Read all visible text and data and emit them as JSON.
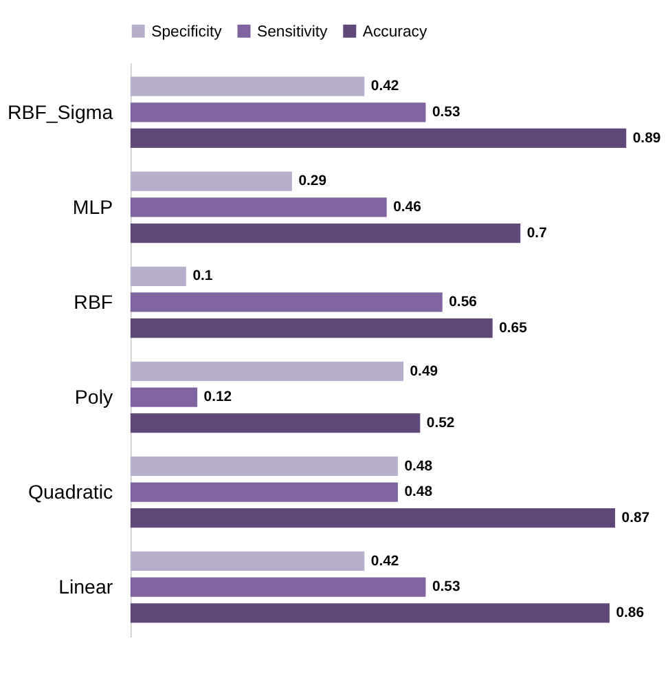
{
  "chart_data": {
    "type": "bar",
    "orientation": "horizontal",
    "categories": [
      "RBF_Sigma",
      "MLP",
      "RBF",
      "Poly",
      "Quadratic",
      "Linear"
    ],
    "series": [
      {
        "name": "Specificity",
        "color": "#b8afcc",
        "values": [
          0.42,
          0.29,
          0.1,
          0.49,
          0.48,
          0.42
        ]
      },
      {
        "name": "Sensitivity",
        "color": "#8064a2",
        "values": [
          0.53,
          0.46,
          0.56,
          0.12,
          0.48,
          0.53
        ]
      },
      {
        "name": "Accuracy",
        "color": "#60497a",
        "values": [
          0.89,
          0.7,
          0.65,
          0.52,
          0.87,
          0.86
        ]
      }
    ],
    "data_labels": true,
    "tick_labels": "y",
    "grid": false,
    "legend": "top"
  }
}
